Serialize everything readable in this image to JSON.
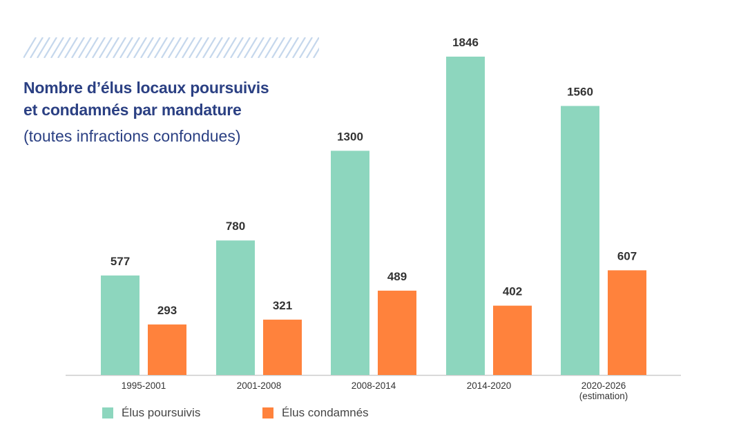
{
  "colors": {
    "poursuivis": "#8dd6be",
    "condamnes": "#ff823c",
    "title": "#2b4083",
    "axis": "#cccccc",
    "label": "#333333",
    "stripes": "#c5d7ec"
  },
  "chart_data": {
    "type": "bar",
    "title_line1": "Nombre d’élus locaux poursuivis",
    "title_line2": "et condamnés par mandature",
    "subtitle": "(toutes infractions confondues)",
    "categories": [
      [
        "1995-2001"
      ],
      [
        "2001-2008"
      ],
      [
        "2008-2014"
      ],
      [
        "2014-2020"
      ],
      [
        "2020-2026",
        "(estimation)"
      ]
    ],
    "series": [
      {
        "name": "Élus poursuivis",
        "values": [
          577,
          780,
          1300,
          1846,
          1560
        ]
      },
      {
        "name": "Élus condamnés",
        "values": [
          293,
          321,
          489,
          402,
          607
        ]
      }
    ],
    "ylim": [
      0,
      1846
    ],
    "grid": false,
    "legend_position": "bottom-left"
  }
}
